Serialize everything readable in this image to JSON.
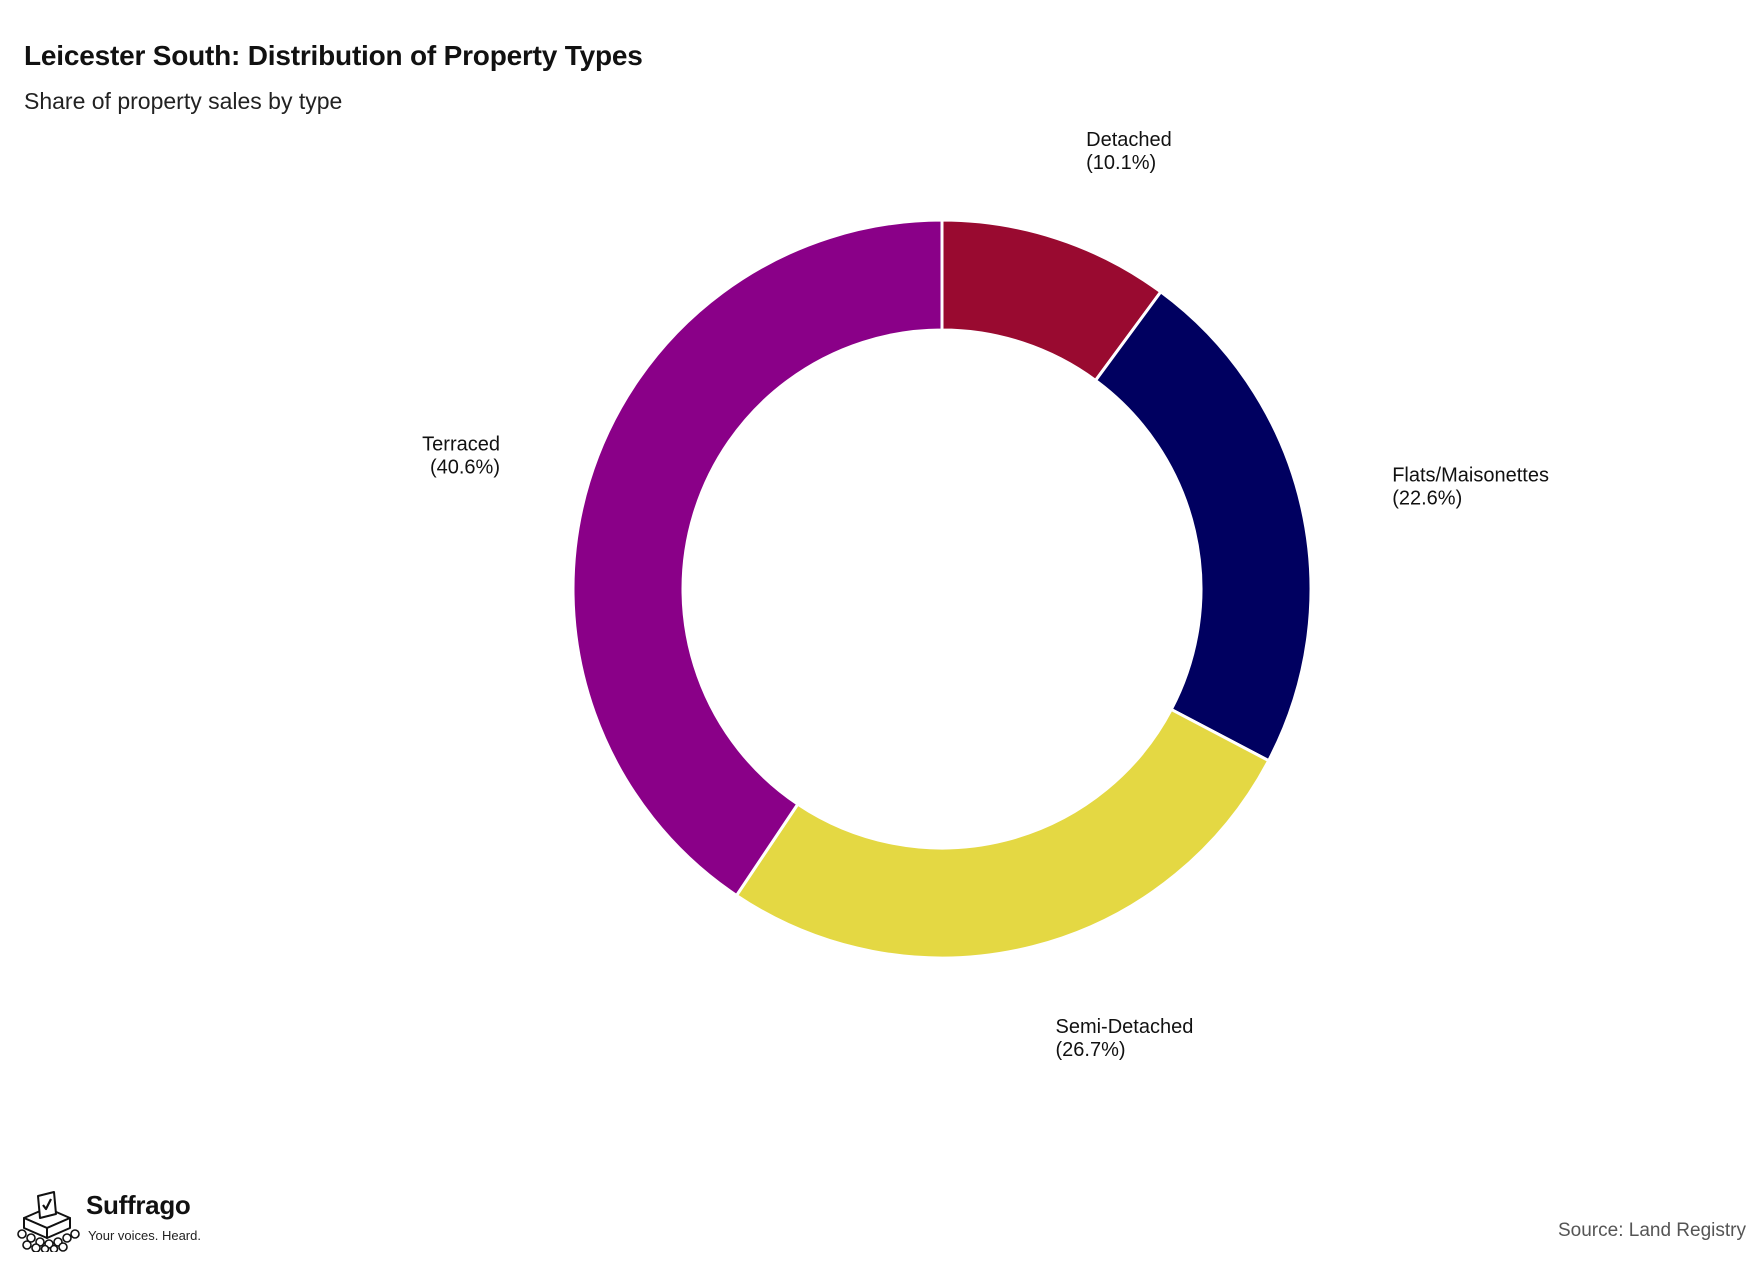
{
  "header": {
    "title": "Leicester South: Distribution of Property Types",
    "subtitle": "Share of property sales by type"
  },
  "chart_data": {
    "type": "pie",
    "donut": true,
    "title": "Leicester South: Distribution of Property Types",
    "subtitle": "Share of property sales by type",
    "unit": "%",
    "legend": "none",
    "slices": [
      {
        "label": "Detached",
        "value": 10.1,
        "display": "(10.1%)",
        "color": "#990a30"
      },
      {
        "label": "Flats/Maisonettes",
        "value": 22.6,
        "display": "(22.6%)",
        "color": "#000060"
      },
      {
        "label": "Semi-Detached",
        "value": 26.7,
        "display": "(26.7%)",
        "color": "#e4d843"
      },
      {
        "label": "Terraced",
        "value": 40.6,
        "display": "(40.6%)",
        "color": "#8a0088"
      }
    ]
  },
  "footer": {
    "brand_name": "Suffrago",
    "brand_tagline": "Your voices. Heard.",
    "brand_logo_icon": "ballot-box-crowd-icon",
    "source": "Source: Land Registry"
  }
}
